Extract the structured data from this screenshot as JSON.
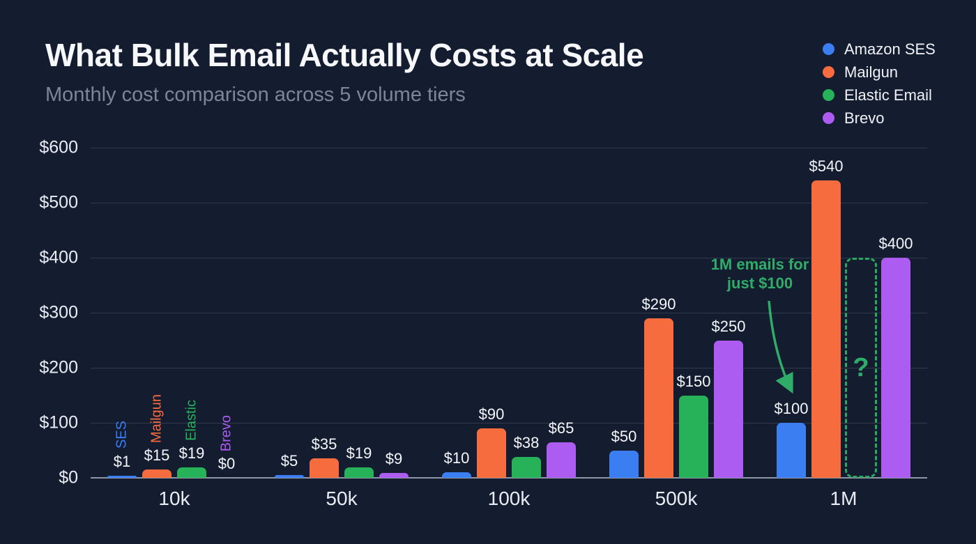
{
  "header": {
    "title": "What Bulk Email Actually Costs at Scale",
    "subtitle": "Monthly cost comparison across 5 volume tiers"
  },
  "colors": {
    "background": "#141c30",
    "amazon_ses": "#3b7ef2",
    "mailgun": "#f76c3e",
    "elastic_email": "#27b259",
    "brevo": "#ac5cf0",
    "annotation_green": "#2fad68",
    "grid": "rgba(255,255,255,0.13)",
    "axis": "#8d95a6"
  },
  "legend": {
    "position": "top-right",
    "items": [
      {
        "label": "Amazon SES",
        "color": "#3b7ef2"
      },
      {
        "label": "Mailgun",
        "color": "#f76c3e"
      },
      {
        "label": "Elastic Email",
        "color": "#27b259"
      },
      {
        "label": "Brevo",
        "color": "#ac5cf0"
      }
    ]
  },
  "chart_data": {
    "type": "bar",
    "title": "What Bulk Email Actually Costs at Scale",
    "subtitle": "Monthly cost comparison across 5 volume tiers",
    "categories": [
      "10k",
      "50k",
      "100k",
      "500k",
      "1M"
    ],
    "series": [
      {
        "name": "Amazon SES",
        "short_label": "SES",
        "color": "#3b7ef2",
        "values": [
          1,
          5,
          10,
          50,
          100
        ]
      },
      {
        "name": "Mailgun",
        "short_label": "Mailgun",
        "color": "#f76c3e",
        "values": [
          15,
          35,
          90,
          290,
          540
        ]
      },
      {
        "name": "Elastic Email",
        "short_label": "Elastic",
        "color": "#27b259",
        "values": [
          19,
          19,
          38,
          150,
          null
        ]
      },
      {
        "name": "Brevo",
        "short_label": "Brevo",
        "color": "#ac5cf0",
        "values": [
          0,
          9,
          65,
          250,
          400
        ]
      }
    ],
    "value_labels": [
      [
        "$1",
        "$15",
        "$19",
        "$0"
      ],
      [
        "$5",
        "$35",
        "$19",
        "$9"
      ],
      [
        "$10",
        "$90",
        "$38",
        "$65"
      ],
      [
        "$50",
        "$290",
        "$150",
        "$250"
      ],
      [
        "$100",
        "$540",
        null,
        "$400"
      ]
    ],
    "placeholder": {
      "category": "1M",
      "series": "Elastic Email",
      "symbol": "?",
      "outline_height_value": 400,
      "color": "#2fad68"
    },
    "y_ticks": [
      "$0",
      "$100",
      "$200",
      "$300",
      "$400",
      "$500",
      "$600"
    ],
    "ylim": [
      0,
      600
    ],
    "grid": true,
    "legend_position": "top-right",
    "annotation": {
      "line1": "1M emails for",
      "line2": "just $100",
      "color": "#2fad68",
      "target": "Amazon SES bar at 1M"
    }
  }
}
